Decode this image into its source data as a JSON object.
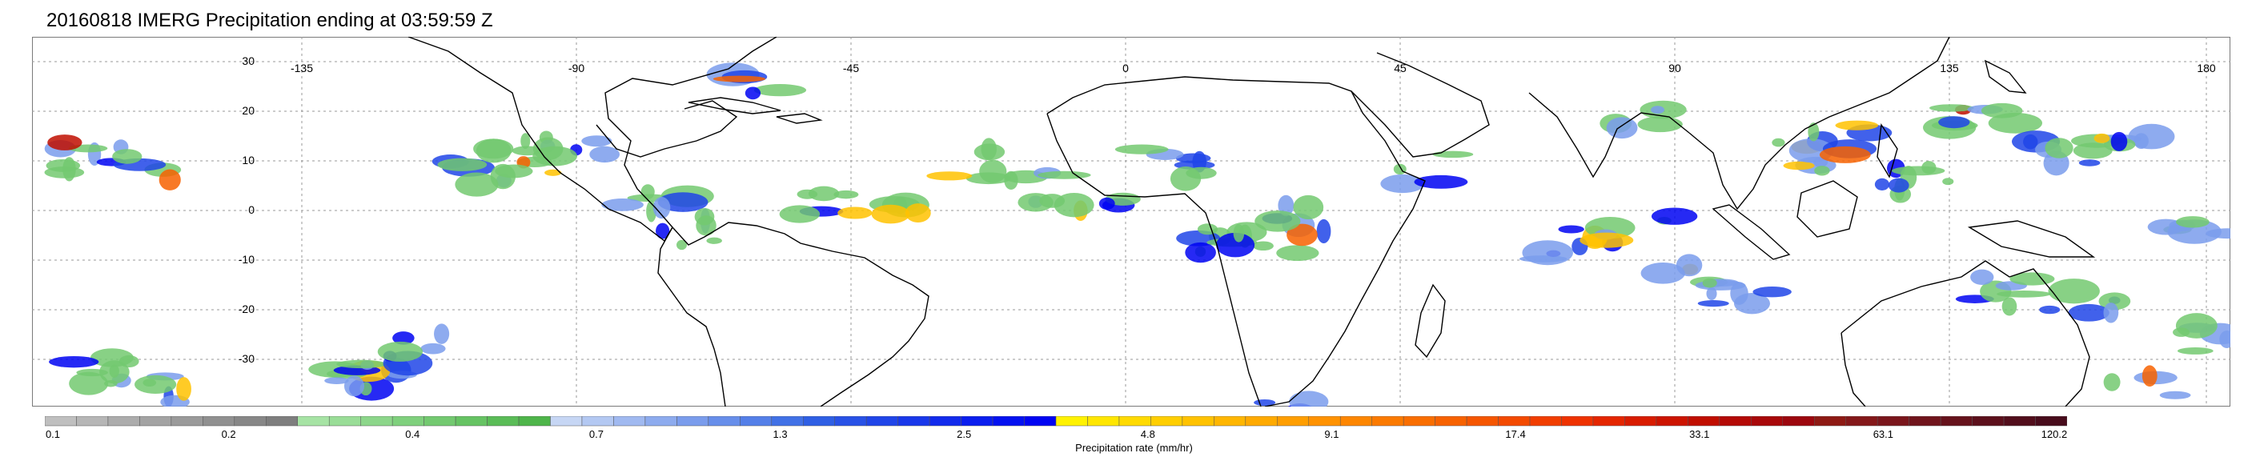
{
  "title": "20160818 IMERG Precipitation ending at 03:59:59 Z",
  "map": {
    "lon_ticks": [
      "-135",
      "-90",
      "-45",
      "0",
      "45",
      "90",
      "135",
      "180"
    ],
    "lat_ticks": [
      "30",
      "20",
      "10",
      "0",
      "-10",
      "-20",
      "-30"
    ],
    "lon_range": [
      -180,
      180
    ],
    "lat_range": [
      -40,
      40
    ],
    "grid": true,
    "coastline_color": "#000000",
    "grid_color": "#9a9a9a"
  },
  "colorbar": {
    "label": "Precipitation rate (mm/hr)",
    "tick_labels": [
      "0.1",
      "0.2",
      "0.4",
      "0.7",
      "1.3",
      "2.5",
      "4.8",
      "9.1",
      "17.4",
      "33.1",
      "63.1",
      "120.2"
    ],
    "colors": [
      "#bfbfbf",
      "#b6b6b6",
      "#acacac",
      "#a3a3a3",
      "#9a9a9a",
      "#909090",
      "#878787",
      "#7e7e7e",
      "#a6e3a4",
      "#99dd97",
      "#8cd68a",
      "#7fd07d",
      "#73c970",
      "#66c363",
      "#5abc57",
      "#4eb54a",
      "#c6d6f4",
      "#b3c8f2",
      "#a0b9f0",
      "#8dabee",
      "#7a9cec",
      "#678eea",
      "#547fe8",
      "#4171e6",
      "#2f5fe4",
      "#2852e6",
      "#2045e8",
      "#1938ea",
      "#122bec",
      "#0b1eee",
      "#0411f0",
      "#0004f2",
      "#fff200",
      "#ffe600",
      "#ffda00",
      "#ffce00",
      "#ffc200",
      "#ffb600",
      "#ffaa00",
      "#ff9e00",
      "#ff9200",
      "#fd8600",
      "#fb7a00",
      "#f96e00",
      "#f76200",
      "#f55600",
      "#f34a00",
      "#f13e00",
      "#ee3200",
      "#e42600",
      "#d81c00",
      "#cc1400",
      "#c00e00",
      "#b40a06",
      "#a8080a",
      "#9c070e",
      "#8e1a14",
      "#84181a",
      "#7a161c",
      "#70141c",
      "#66121c",
      "#5c101c",
      "#520e1c",
      "#480c1c"
    ]
  }
}
